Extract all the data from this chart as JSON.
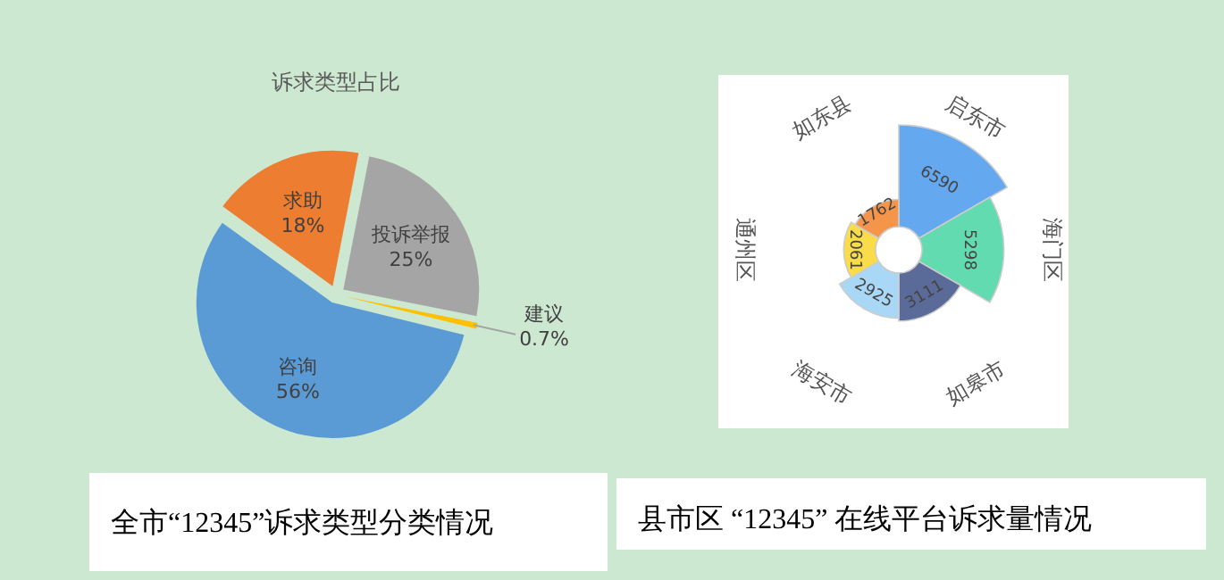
{
  "chart_data": [
    {
      "type": "pie",
      "title": "诉求类型占比",
      "categories": [
        "投诉举报",
        "建议",
        "咨询",
        "求助"
      ],
      "values": [
        25,
        0.7,
        56,
        18
      ],
      "value_labels": [
        "25%",
        "0.7%",
        "56%",
        "18%"
      ],
      "colors": [
        "#a5a5a5",
        "#ffc000",
        "#5b9bd5",
        "#ed7d31"
      ],
      "annotations": [
        "全市“12345”诉求类型分类情况"
      ]
    },
    {
      "type": "other",
      "categories": [
        "启东市",
        "海门区",
        "如皋市",
        "海安市",
        "通州区",
        "如东县"
      ],
      "values": [
        6590,
        5298,
        3111,
        2925,
        2061,
        1762
      ],
      "colors": [
        "#64a8f0",
        "#62dbb0",
        "#5a6b9a",
        "#a8d8f5",
        "#fadc4a",
        "#f5954a"
      ],
      "data_labels": true,
      "annotations": [
        "县市区 “12345” 在线平台诉求量情况"
      ]
    }
  ]
}
